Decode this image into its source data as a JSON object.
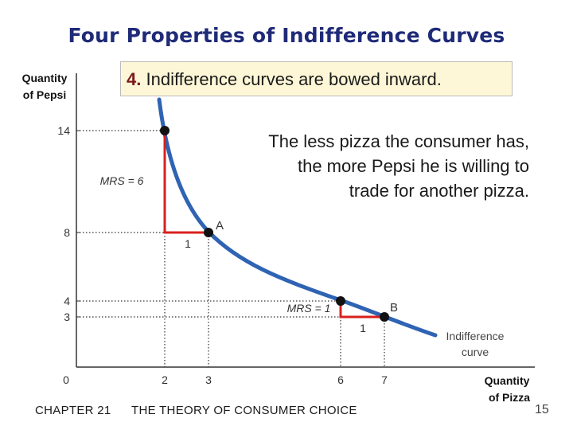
{
  "title": "Four Properties of Indifference Curves",
  "callout": {
    "number": "4.",
    "text": "Indifference curves are bowed inward."
  },
  "explanation_lines": [
    "The less pizza the consumer has,",
    "the more Pepsi he is willing to",
    "trade for another pizza."
  ],
  "y_axis": {
    "label_line1": "Quantity",
    "label_line2": "of Pepsi",
    "ticks": [
      "14",
      "8",
      "4",
      "3"
    ]
  },
  "x_axis": {
    "label_line1": "Quantity",
    "label_line2": "of Pizza",
    "ticks": [
      "0",
      "2",
      "3",
      "6",
      "7"
    ]
  },
  "mrs_labels": {
    "first": "MRS = 6",
    "second": "MRS = 1"
  },
  "step_labels": {
    "first": "1",
    "second": "1"
  },
  "point_labels": {
    "a": "A",
    "b": "B"
  },
  "curve_label": {
    "line1": "Indifference",
    "line2": "curve"
  },
  "footer": {
    "chapter": "CHAPTER 21",
    "title": "THE THEORY OF CONSUMER CHOICE",
    "page": "15"
  },
  "colors": {
    "title": "#1f2a78",
    "curve": "#2f63b3",
    "steps": "#d9201e",
    "callout_bg": "#fdf7d7",
    "callout_number": "#7a1a1a"
  }
}
